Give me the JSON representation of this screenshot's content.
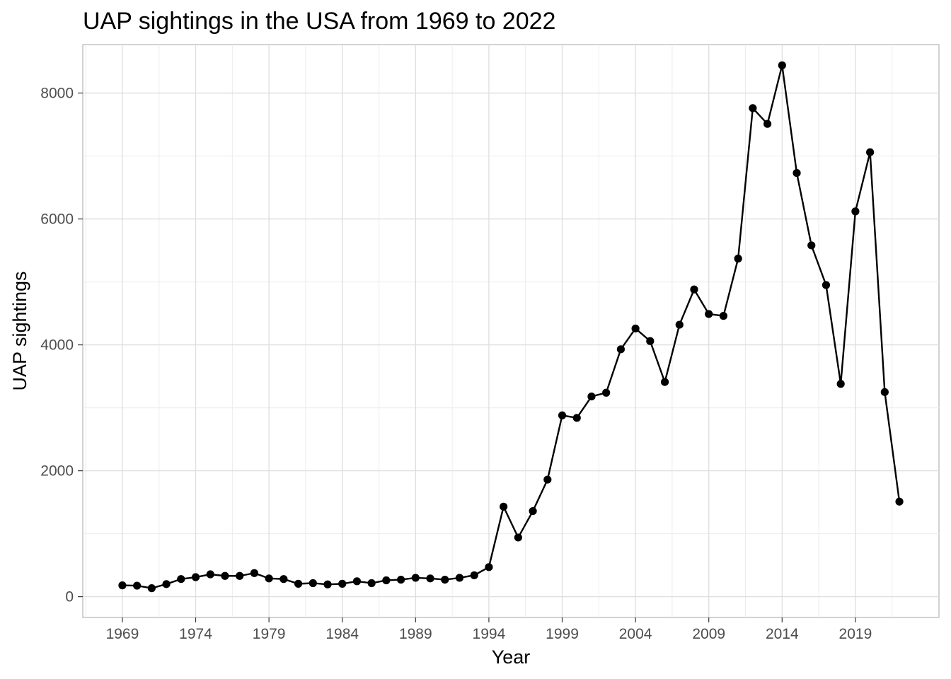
{
  "chart_data": {
    "type": "line",
    "title": "UAP sightings in the USA from 1969 to 2022",
    "xlabel": "Year",
    "ylabel": "UAP sightings",
    "xlim": [
      1966.3,
      2024.7
    ],
    "ylim": [
      -330,
      8770
    ],
    "x_ticks": [
      1969,
      1974,
      1979,
      1984,
      1989,
      1994,
      1999,
      2004,
      2009,
      2014,
      2019
    ],
    "y_ticks": [
      0,
      2000,
      4000,
      6000,
      8000
    ],
    "grid": true,
    "x": [
      1969,
      1970,
      1971,
      1972,
      1973,
      1974,
      1975,
      1976,
      1977,
      1978,
      1979,
      1980,
      1981,
      1982,
      1983,
      1984,
      1985,
      1986,
      1987,
      1988,
      1989,
      1990,
      1991,
      1992,
      1993,
      1994,
      1995,
      1996,
      1997,
      1998,
      1999,
      2000,
      2001,
      2002,
      2003,
      2004,
      2005,
      2006,
      2007,
      2008,
      2009,
      2010,
      2011,
      2012,
      2013,
      2014,
      2015,
      2016,
      2017,
      2018,
      2019,
      2020,
      2021,
      2022
    ],
    "y": [
      180,
      175,
      135,
      200,
      280,
      310,
      355,
      330,
      330,
      375,
      290,
      280,
      205,
      215,
      195,
      205,
      245,
      215,
      260,
      270,
      300,
      290,
      270,
      300,
      340,
      470,
      1430,
      940,
      1360,
      1860,
      2880,
      2840,
      3180,
      3240,
      3930,
      4260,
      4060,
      3410,
      4320,
      4880,
      4490,
      4460,
      5370,
      7760,
      7510,
      8440,
      6730,
      5580,
      4950,
      3380,
      6120,
      7060,
      3250,
      1510
    ],
    "series": [
      {
        "name": "UAP sightings",
        "color": "#000000"
      }
    ]
  }
}
